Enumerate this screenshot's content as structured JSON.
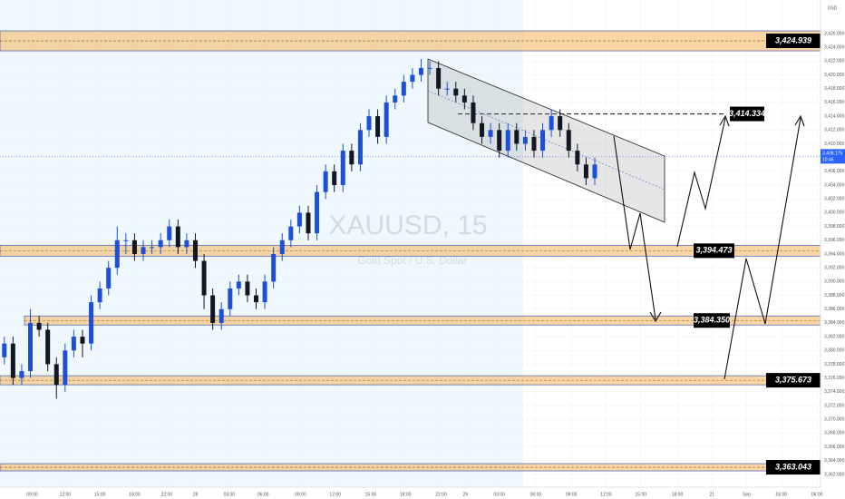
{
  "chart_data": {
    "type": "candlestick",
    "currency": "USD",
    "symbol": "XAUUSD, 15",
    "description": "Gold Spot / U.S. Dollar",
    "up_color": "#1e4fd8",
    "down_color": "#131722",
    "open": [
      3379,
      3381,
      3376,
      3377,
      3384,
      3383,
      3378,
      3375,
      3380,
      3382,
      3381,
      3387,
      3389,
      3392,
      3396,
      3396,
      3394,
      3395,
      3395,
      3396,
      3398,
      3395,
      3396,
      3393,
      3388,
      3384,
      3386,
      3389,
      3390,
      3388,
      3387,
      3390,
      3394,
      3396,
      3398,
      3400,
      3397,
      3403,
      3406,
      3404,
      3409,
      3407,
      3412,
      3414,
      3411,
      3416,
      3417,
      3419,
      3420,
      3421,
      3421,
      3418,
      3418,
      3417,
      3416,
      3413,
      3411,
      3412,
      3409,
      3412,
      3410,
      3411,
      3409,
      3412,
      3414,
      3412,
      3409,
      3407,
      3405
    ],
    "high": [
      3382,
      3382,
      3378,
      3386,
      3385,
      3384,
      3379,
      3381,
      3383,
      3383,
      3388,
      3390,
      3393,
      3398,
      3397,
      3397,
      3396,
      3396,
      3397,
      3399,
      3399,
      3397,
      3397,
      3394,
      3389,
      3387,
      3390,
      3391,
      3391,
      3389,
      3391,
      3395,
      3397,
      3399,
      3401,
      3401,
      3404,
      3407,
      3407,
      3410,
      3410,
      3413,
      3415,
      3415,
      3417,
      3418,
      3420,
      3421,
      3422.3,
      3422,
      3422,
      3419,
      3419,
      3418,
      3417,
      3414,
      3413,
      3413,
      3413,
      3413,
      3412,
      3412,
      3413,
      3415,
      3415,
      3413,
      3410,
      3408,
      3408
    ],
    "low": [
      3378,
      3375,
      3375,
      3376,
      3382,
      3377,
      3373,
      3374,
      3379,
      3379,
      3380,
      3386,
      3388,
      3391,
      3394,
      3393,
      3393,
      3394,
      3394,
      3395,
      3394,
      3394,
      3392,
      3386,
      3383,
      3383,
      3385,
      3388,
      3387,
      3386,
      3386,
      3389,
      3393,
      3395,
      3397,
      3396,
      3396,
      3402,
      3403,
      3403,
      3406,
      3406,
      3411,
      3410,
      3410,
      3415,
      3416,
      3418,
      3419,
      3420,
      3417,
      3417,
      3416,
      3415,
      3412,
      3410,
      3410,
      3408,
      3408,
      3409,
      3409,
      3408,
      3408,
      3411,
      3411,
      3408,
      3406,
      3404,
      3404
    ],
    "close": [
      3381,
      3376,
      3377,
      3384,
      3383,
      3378,
      3375,
      3380,
      3382,
      3381,
      3387,
      3389,
      3392,
      3396,
      3396,
      3394,
      3395,
      3395,
      3396,
      3398,
      3395,
      3396,
      3393,
      3388,
      3384,
      3386,
      3389,
      3390,
      3388,
      3387,
      3390,
      3394,
      3396,
      3398,
      3400,
      3397,
      3403,
      3406,
      3404,
      3409,
      3407,
      3412,
      3414,
      3411,
      3416,
      3417,
      3419,
      3420,
      3421,
      3421,
      3418,
      3418,
      3417,
      3416,
      3413,
      3411,
      3412,
      3409,
      3412,
      3410,
      3411,
      3409,
      3412,
      3414,
      3412,
      3409,
      3407,
      3405,
      3407
    ],
    "xlim": [
      -0.5,
      94
    ],
    "xticks": [
      {
        "value": 3.2,
        "label": "09:00"
      },
      {
        "value": 7,
        "label": "12:00"
      },
      {
        "value": 11,
        "label": "15:00"
      },
      {
        "value": 15,
        "label": "18:00"
      },
      {
        "value": 18.7,
        "label": "22:00"
      },
      {
        "value": 22,
        "label": "28"
      },
      {
        "value": 25.9,
        "label": "03:00"
      },
      {
        "value": 29.8,
        "label": "06:00"
      },
      {
        "value": 34.1,
        "label": "09:00"
      },
      {
        "value": 38.1,
        "label": "12:00"
      },
      {
        "value": 42.2,
        "label": "15:00"
      },
      {
        "value": 46.2,
        "label": "18:00"
      },
      {
        "value": 50.3,
        "label": "22:00"
      },
      {
        "value": 53.1,
        "label": "29"
      },
      {
        "value": 57,
        "label": "03:00"
      },
      {
        "value": 61.2,
        "label": "06:00"
      },
      {
        "value": 65.3,
        "label": "09:00"
      },
      {
        "value": 69.3,
        "label": "12:00"
      },
      {
        "value": 73.3,
        "label": "15:00"
      },
      {
        "value": 77.5,
        "label": "18:00"
      },
      {
        "value": 81.5,
        "label": "21"
      },
      {
        "value": 85.5,
        "label": "Sep"
      },
      {
        "value": 89.5,
        "label": "03:00"
      },
      {
        "value": 93.6,
        "label": "06:00"
      }
    ],
    "ylim": [
      3360.15,
      3430.87
    ],
    "yticks": [
      {
        "value": 3362,
        "label": "3,362.000"
      },
      {
        "value": 3364,
        "label": "3,364.000"
      },
      {
        "value": 3366,
        "label": "3,366.000"
      },
      {
        "value": 3368,
        "label": "3,368.000"
      },
      {
        "value": 3370,
        "label": "3,370.000"
      },
      {
        "value": 3372,
        "label": "3,372.000"
      },
      {
        "value": 3374,
        "label": "3,374.000"
      },
      {
        "value": 3376,
        "label": "3,376.000"
      },
      {
        "value": 3378,
        "label": "3,378.000"
      },
      {
        "value": 3380,
        "label": "3,380.000"
      },
      {
        "value": 3382,
        "label": "3,382.000"
      },
      {
        "value": 3384,
        "label": "3,384.000"
      },
      {
        "value": 3386,
        "label": "3,386.000"
      },
      {
        "value": 3388,
        "label": "3,388.000"
      },
      {
        "value": 3390,
        "label": "3,390.000"
      },
      {
        "value": 3392,
        "label": "3,392.000"
      },
      {
        "value": 3394,
        "label": "3,394.000"
      },
      {
        "value": 3396,
        "label": "3,396.000"
      },
      {
        "value": 3398,
        "label": "3,398.000"
      },
      {
        "value": 3400,
        "label": "3,400.000"
      },
      {
        "value": 3402,
        "label": "3,402.000"
      },
      {
        "value": 3404,
        "label": "3,404.000"
      },
      {
        "value": 3406,
        "label": "3,406.000"
      },
      {
        "value": 3408,
        "label": "3,408.000"
      },
      {
        "value": 3410,
        "label": "3,410.000"
      },
      {
        "value": 3412,
        "label": "3,412.000"
      },
      {
        "value": 3414,
        "label": "3,414.000"
      },
      {
        "value": 3416,
        "label": "3,416.000"
      },
      {
        "value": 3418,
        "label": "3,418.000"
      },
      {
        "value": 3420,
        "label": "3,420.000"
      },
      {
        "value": 3422,
        "label": "3,422.000"
      },
      {
        "value": 3424,
        "label": "3,424.000"
      },
      {
        "value": 3426,
        "label": "3,426.000"
      }
    ],
    "levels": [
      {
        "value": 3424.939,
        "label": "3,424.939"
      },
      {
        "value": 3394.473,
        "label": "3,394.473"
      },
      {
        "value": 3384.35,
        "label": "3,384.350"
      },
      {
        "value": 3375.673,
        "label": "3,375.673"
      },
      {
        "value": 3363.043,
        "label": "3,363.043"
      }
    ],
    "target": {
      "value": 3414.334,
      "label": "3,414.334"
    },
    "last_price": {
      "value": 3408.175,
      "label": "3,408.175"
    },
    "countdown": "10:46"
  }
}
